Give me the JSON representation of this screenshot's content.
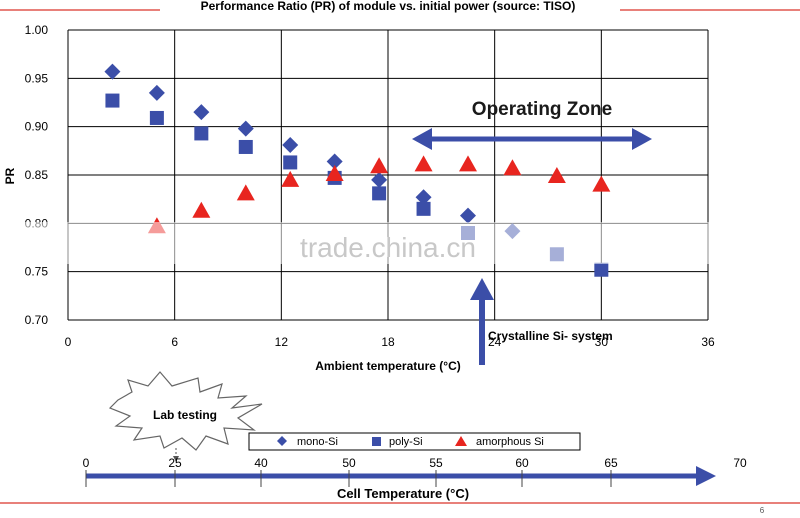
{
  "chart_data": {
    "type": "scatter",
    "title": "Performance Ratio (PR) of module vs. initial power (source: TISO)",
    "xlabel": "Ambient temperature (°C)",
    "ylabel": "PR",
    "xlim": [
      0,
      36
    ],
    "ylim": [
      0.7,
      1.0
    ],
    "x_ticks": [
      "0",
      "6",
      "12",
      "18",
      "24",
      "30",
      "36"
    ],
    "y_ticks": [
      "0.70",
      "0.75",
      "0.80",
      "0.85",
      "0.90",
      "0.95",
      "1.00"
    ],
    "grid": true,
    "legend_position": "bottom",
    "series": [
      {
        "name": "mono-Si",
        "color": "#3b4ea8",
        "marker": "diamond",
        "points": [
          [
            2.5,
            0.957
          ],
          [
            5,
            0.935
          ],
          [
            7.5,
            0.915
          ],
          [
            10,
            0.898
          ],
          [
            12.5,
            0.881
          ],
          [
            15,
            0.864
          ],
          [
            17.5,
            0.845
          ],
          [
            20,
            0.827
          ],
          [
            22.5,
            0.808
          ],
          [
            25,
            0.792
          ]
        ]
      },
      {
        "name": "poly-Si",
        "color": "#3b4ea8",
        "marker": "square",
        "points": [
          [
            2.5,
            0.927
          ],
          [
            5,
            0.909
          ],
          [
            7.5,
            0.893
          ],
          [
            10,
            0.879
          ],
          [
            12.5,
            0.863
          ],
          [
            15,
            0.847
          ],
          [
            17.5,
            0.831
          ],
          [
            20,
            0.815
          ],
          [
            22.5,
            0.79
          ],
          [
            27.5,
            0.768
          ],
          [
            30,
            0.752
          ]
        ]
      },
      {
        "name": "amorphous Si",
        "color": "#e8251f",
        "marker": "triangle",
        "points": [
          [
            5,
            0.797
          ],
          [
            7.5,
            0.813
          ],
          [
            10,
            0.831
          ],
          [
            12.5,
            0.845
          ],
          [
            15,
            0.851
          ],
          [
            17.5,
            0.859
          ],
          [
            20,
            0.861
          ],
          [
            22.5,
            0.861
          ],
          [
            25,
            0.857
          ],
          [
            27.5,
            0.849
          ],
          [
            30,
            0.84
          ]
        ]
      }
    ]
  },
  "annotations": {
    "operating_zone": "Operating Zone",
    "crystalline": "Crystalline Si- system",
    "lab_testing": "Lab testing",
    "watermark": "trade.china.cn"
  },
  "cell_temperature_axis": {
    "label": "Cell Temperature (°C)",
    "ticks": [
      "0",
      "25",
      "40",
      "50",
      "55",
      "60",
      "65",
      "70"
    ]
  },
  "slide_number": "6",
  "colors": {
    "accent_line": "#d9342b",
    "arrow": "#3b4ea8",
    "grid": "#000000"
  }
}
